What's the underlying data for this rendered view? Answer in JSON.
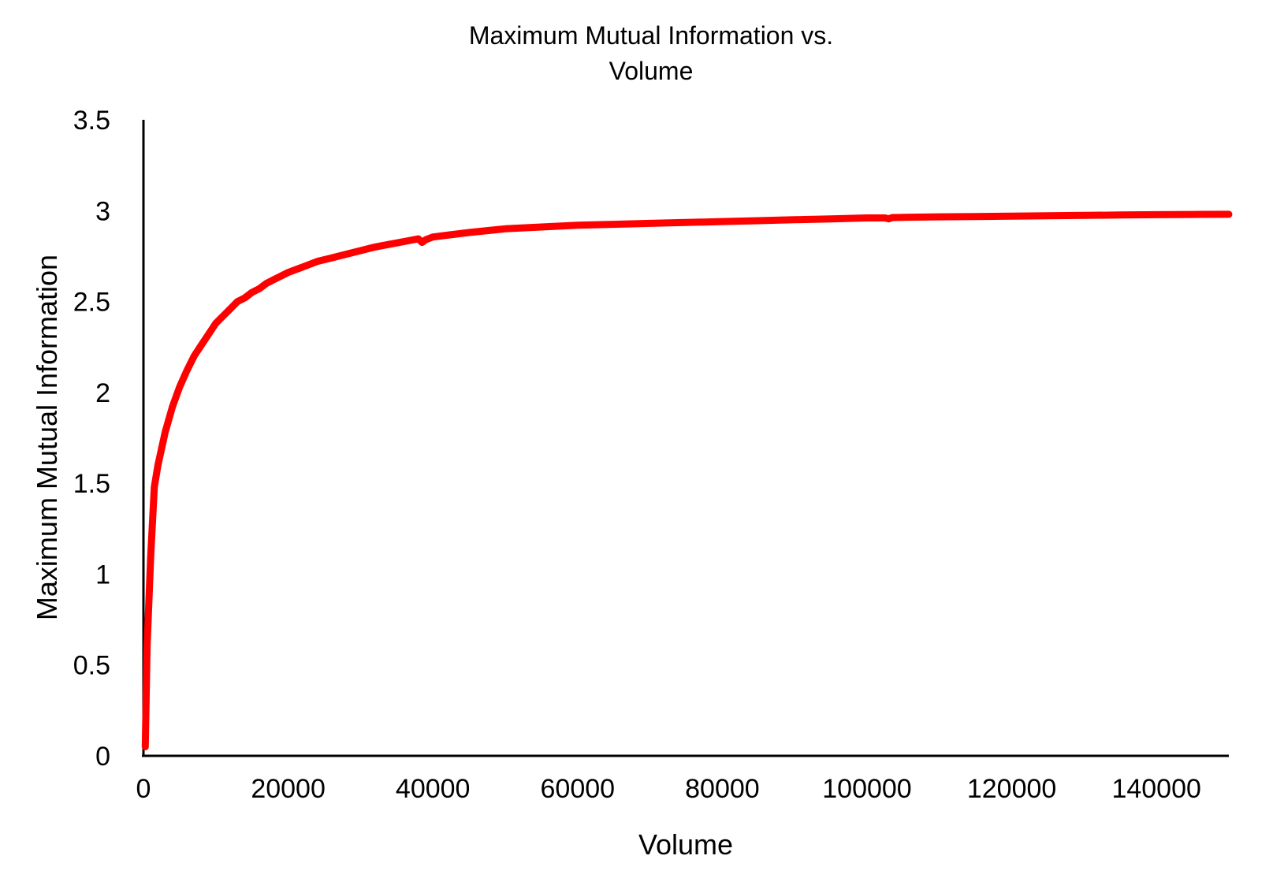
{
  "chart_data": {
    "type": "line",
    "title_lines": [
      "Maximum Mutual Information vs.",
      "Volume"
    ],
    "xlabel": "Volume",
    "ylabel": "Maximum Mutual Information",
    "xlim": [
      0,
      150000
    ],
    "ylim": [
      0,
      3.5
    ],
    "x_ticks": [
      0,
      20000,
      40000,
      60000,
      80000,
      100000,
      120000,
      140000
    ],
    "x_tick_labels": [
      "0",
      "20000",
      "40000",
      "60000",
      "80000",
      "100000",
      "120000",
      "140000"
    ],
    "y_ticks": [
      0,
      0.5,
      1,
      1.5,
      2,
      2.5,
      3,
      3.5
    ],
    "y_tick_labels": [
      "0",
      "0.5",
      "1",
      "1.5",
      "2",
      "2.5",
      "3",
      "3.5"
    ],
    "grid": false,
    "legend": "none",
    "series": [
      {
        "color": "#ff0000",
        "x": [
          250,
          500,
          1000,
          1500,
          2000,
          3000,
          4000,
          5000,
          6000,
          7000,
          8000,
          9000,
          10000,
          11000,
          12000,
          13000,
          14000,
          15000,
          16000,
          17000,
          18000,
          20000,
          22000,
          24000,
          26000,
          28000,
          30000,
          32000,
          34000,
          36000,
          38000,
          38500,
          39000,
          40000,
          42000,
          45000,
          50000,
          55000,
          60000,
          65000,
          70000,
          75000,
          80000,
          85000,
          90000,
          95000,
          100000,
          102500,
          103000,
          103500,
          105000,
          110000,
          115000,
          120000,
          125000,
          130000,
          135000,
          140000,
          145000,
          150000
        ],
        "y": [
          0.05,
          0.6,
          1.1,
          1.48,
          1.6,
          1.78,
          1.92,
          2.03,
          2.12,
          2.2,
          2.26,
          2.32,
          2.38,
          2.42,
          2.46,
          2.5,
          2.52,
          2.55,
          2.57,
          2.6,
          2.62,
          2.66,
          2.69,
          2.72,
          2.74,
          2.76,
          2.78,
          2.8,
          2.815,
          2.83,
          2.845,
          2.825,
          2.84,
          2.855,
          2.865,
          2.88,
          2.9,
          2.91,
          2.92,
          2.925,
          2.93,
          2.935,
          2.94,
          2.945,
          2.95,
          2.955,
          2.96,
          2.96,
          2.955,
          2.962,
          2.963,
          2.966,
          2.968,
          2.97,
          2.972,
          2.974,
          2.976,
          2.978,
          2.979,
          2.98
        ]
      }
    ]
  }
}
